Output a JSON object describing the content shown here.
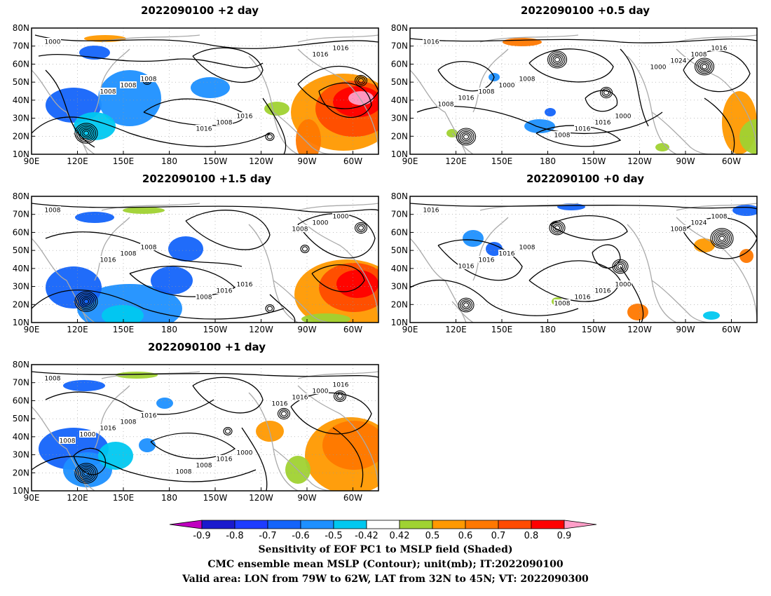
{
  "panels": [
    {
      "title": "2022090100  +2 day",
      "isobar_labels": [
        "1000",
        "1008",
        "1016",
        "1016",
        "1008",
        "1008",
        "1016",
        "1008",
        "1016"
      ]
    },
    {
      "title": "2022090100  +0.5 day",
      "isobar_labels": [
        "1016",
        "1008",
        "1000",
        "1016",
        "1000",
        "1016",
        "1008",
        "1008",
        "1016",
        "1024",
        "1016",
        "1008",
        "1000",
        "1008"
      ]
    },
    {
      "title": "2022090100  +1.5 day",
      "isobar_labels": [
        "1008",
        "1008",
        "1016",
        "1000",
        "1008",
        "1016",
        "1000",
        "1016",
        "1008",
        "1008"
      ]
    },
    {
      "title": "2022090100  +0 day",
      "isobar_labels": [
        "1016",
        "1008",
        "1000",
        "1008",
        "1016",
        "1016",
        "1024",
        "1016",
        "1016",
        "1008",
        "1016",
        "1008"
      ]
    },
    {
      "title": "2022090100  +1 day",
      "isobar_labels": [
        "1008",
        "1016",
        "1000",
        "1016",
        "1008",
        "1016",
        "1000",
        "1016",
        "1008",
        "1016",
        "1000",
        "1008",
        "1016",
        "1008"
      ]
    }
  ],
  "lat_ticks": [
    "10N",
    "20N",
    "30N",
    "40N",
    "50N",
    "60N",
    "70N",
    "80N"
  ],
  "lon_ticks": [
    "90E",
    "120E",
    "150E",
    "180",
    "150W",
    "120W",
    "90W",
    "60W"
  ],
  "colorbar": {
    "ticks": [
      "-0.9",
      "-0.8",
      "-0.7",
      "-0.6",
      "-0.5",
      "-0.42",
      "0.42",
      "0.5",
      "0.6",
      "0.7",
      "0.8",
      "0.9"
    ],
    "colors": [
      "#c000c0",
      "#1a1acd",
      "#1e3cff",
      "#1464fa",
      "#1e90ff",
      "#00c8f0",
      "#ffffff",
      "#a0d232",
      "#ff9900",
      "#ff7800",
      "#ff4b00",
      "#ff0000",
      "#ff9ec8"
    ]
  },
  "captions": [
    "Sensitivity of EOF PC1 to MSLP field (Shaded)",
    "CMC ensemble mean MSLP (Contour); unit(mb); IT:2022090100",
    "Valid area: LON from 79W to 62W, LAT from 32N to 45N; VT: 2022090300"
  ]
}
